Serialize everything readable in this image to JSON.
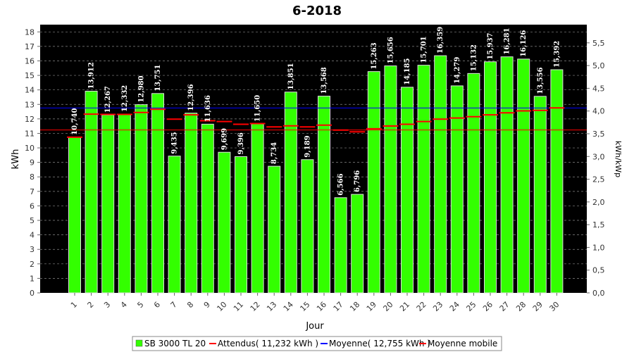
{
  "chart_data": {
    "type": "bar",
    "title": "6-2018",
    "xlabel": "Jour",
    "ylabel": "kWh",
    "y2label": "kWh/kWp",
    "ylim": [
      0,
      18.5
    ],
    "y2lim": [
      0,
      5.9
    ],
    "grid": true,
    "categories": [
      "1",
      "2",
      "3",
      "4",
      "5",
      "6",
      "7",
      "8",
      "9",
      "10",
      "11",
      "12",
      "13",
      "14",
      "15",
      "16",
      "17",
      "18",
      "19",
      "20",
      "21",
      "22",
      "23",
      "24",
      "25",
      "26",
      "27",
      "28",
      "29",
      "30"
    ],
    "series": [
      {
        "name": "SB 3000 TL 20",
        "type": "bar",
        "color": "#33ff00",
        "values": [
          10.74,
          13.912,
          12.267,
          12.332,
          12.98,
          13.751,
          9.435,
          12.396,
          11.636,
          9.699,
          9.396,
          11.65,
          8.734,
          13.851,
          9.189,
          13.568,
          6.566,
          6.796,
          15.263,
          15.656,
          14.185,
          15.701,
          16.359,
          14.279,
          15.132,
          15.937,
          16.281,
          16.126,
          13.556,
          15.392
        ],
        "labels": [
          "10,740",
          "13,912",
          "12,267",
          "12,332",
          "12,980",
          "13,751",
          "9,435",
          "12,396",
          "11,636",
          "9,699",
          "9,396",
          "11,650",
          "8,734",
          "13,851",
          "9,189",
          "13,568",
          "6,566",
          "6,796",
          "15,263",
          "15,656",
          "14,185",
          "15,701",
          "16,359",
          "14,279",
          "15,132",
          "15,937",
          "16,281",
          "16,126",
          "13,556",
          "15,392"
        ]
      },
      {
        "name": "Moyenne mobile",
        "type": "step",
        "color": "#ff0000",
        "values": [
          10.74,
          12.33,
          12.31,
          12.31,
          12.44,
          12.66,
          11.98,
          12.28,
          11.87,
          11.82,
          11.63,
          11.68,
          11.45,
          11.52,
          11.45,
          11.57,
          11.23,
          11.11,
          11.32,
          11.51,
          11.63,
          11.82,
          11.98,
          12.06,
          12.15,
          12.28,
          12.42,
          12.55,
          12.59,
          12.76
        ]
      },
      {
        "name": "Attendus",
        "type": "line",
        "color": "#ff0000",
        "value": 11.232
      },
      {
        "name": "Moyenne",
        "type": "line",
        "color": "#0000ff",
        "value": 12.755
      }
    ],
    "legend": {
      "placement": "bottom",
      "items": [
        {
          "label": "SB 3000 TL 20",
          "color": "#33ff00",
          "kind": "box"
        },
        {
          "label": "Attendus( 11,232 kWh )",
          "color": "#ff0000",
          "kind": "line"
        },
        {
          "label": "Moyenne( 12,755 kWh )",
          "color": "#0000ff",
          "kind": "line"
        },
        {
          "label": "Moyenne mobile",
          "color": "#ff0000",
          "kind": "line"
        }
      ]
    },
    "y_ticks": [
      "0",
      "1",
      "2",
      "3",
      "4",
      "5",
      "6",
      "7",
      "8",
      "9",
      "10",
      "11",
      "12",
      "13",
      "14",
      "15",
      "16",
      "17",
      "18"
    ],
    "y2_ticks": [
      "0,0",
      "0,5",
      "1,0",
      "1,5",
      "2,0",
      "2,5",
      "3,0",
      "3,5",
      "4,0",
      "4,5",
      "5,0",
      "5,5"
    ],
    "colors": {
      "plot_background": "#000000",
      "grid": "#888888",
      "bar_fill": "#33ff00",
      "bar_edge": "#dddddd",
      "data_label": "#ffffff"
    }
  }
}
